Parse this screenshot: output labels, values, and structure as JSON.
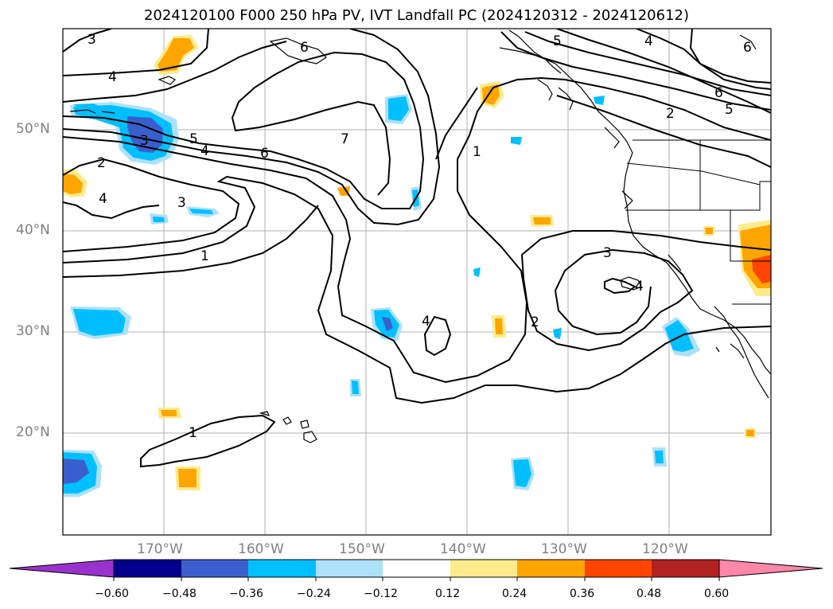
{
  "title": "2024120100 F000 250 hPa PV, IVT Landfall PC (2024120312 - 2024120612)",
  "map": {
    "lon_range": [
      -180,
      -110
    ],
    "lat_range": [
      10,
      60
    ],
    "lat_labels": [
      "20°N",
      "30°N",
      "40°N",
      "50°N"
    ],
    "lon_labels": [
      "170°W",
      "160°W",
      "150°W",
      "140°W",
      "130°W",
      "120°W"
    ],
    "gridline_color": "#b0b0b0",
    "label_color": "#808080"
  },
  "contour_labels": [
    "3",
    "4",
    "2",
    "4",
    "3",
    "5",
    "4",
    "6",
    "7",
    "3",
    "1",
    "5",
    "4",
    "2",
    "6",
    "5",
    "1",
    "3",
    "4",
    "2",
    "4",
    "1",
    "6",
    "6"
  ],
  "colorbar": {
    "ticks": [
      "−0.60",
      "−0.48",
      "−0.36",
      "−0.24",
      "−0.12",
      "0.12",
      "0.24",
      "0.36",
      "0.48",
      "0.60"
    ],
    "colors": [
      "#9932CC",
      "#00008B",
      "#3A5FCD",
      "#00BFFF",
      "#ADE1FA",
      "#FFFFFF",
      "#FFEB8C",
      "#FFA500",
      "#FF4500",
      "#B22222",
      "#FF88AA"
    ]
  }
}
